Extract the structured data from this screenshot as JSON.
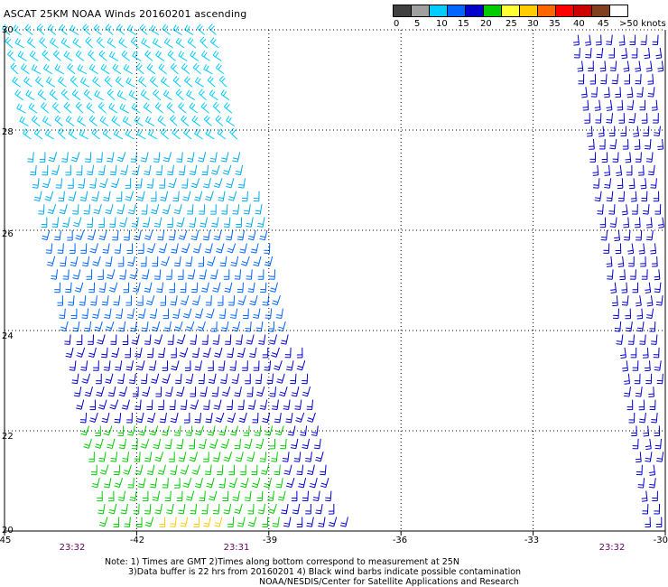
{
  "title": "ASCAT 25KM NOAA Winds 20160201 ascending",
  "colorbar": {
    "colors": [
      "#404040",
      "#a0a0a0",
      "#00ccff",
      "#0066ff",
      "#0000cc",
      "#00cc00",
      "#ffff33",
      "#ffcc00",
      "#ff6600",
      "#ff0000",
      "#cc0000",
      "#804020",
      "#ffffff",
      "#ff00ff",
      "#9900cc",
      "#330066"
    ],
    "labels": [
      "0",
      "5",
      "10",
      "15",
      "20",
      "25",
      "30",
      "35",
      "40",
      "45",
      ">50 knots"
    ],
    "label_positions_note": ""
  },
  "map": {
    "lon_range": [
      -45,
      -30
    ],
    "lat_range": [
      20,
      30
    ],
    "lon_ticks": [
      "-45",
      "-42",
      "-39",
      "-36",
      "-33",
      "-30"
    ],
    "lat_ticks": [
      "30",
      "28",
      "26",
      "24",
      "22",
      "20"
    ],
    "times": [
      "23:32",
      "23:31",
      "23:32"
    ],
    "swaths": [
      {
        "name": "west-swath",
        "west_edge_top": -44.9,
        "east_edge_top": -40.2,
        "west_edge_bottom": -42.6,
        "east_edge_bottom": -37.1
      },
      {
        "name": "east-swath",
        "west_edge_top": -32.0,
        "east_edge_top": -30.0,
        "west_edge_bottom": -30.3,
        "east_edge_bottom": -30.0
      }
    ]
  },
  "notes": [
    "Note: 1) Times are GMT 2)Times along bottom correspond to measurement at 25N",
    "3)Data buffer is 22 hrs from 20160201 4) Black wind barbs indicate possible contamination",
    "NOAA/NESDIS/Center for Satellite Applications and Research"
  ]
}
